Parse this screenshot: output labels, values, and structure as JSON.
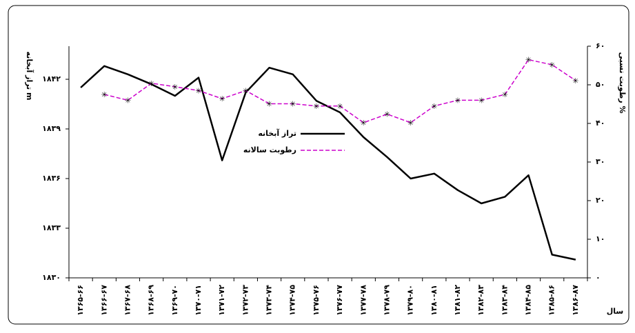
{
  "chart_data": {
    "type": "line",
    "y_label": "تراز آبخانه m",
    "y2_label": "رطوبت نسبی %",
    "x_label": "سال",
    "categories": [
      "۱۳۶۵-۶۶",
      "۱۳۶۶-۶۷",
      "۱۳۶۷-۶۸",
      "۱۳۶۸-۶۹",
      "۱۳۶۹-۷۰",
      "۱۳۷۰-۷۱",
      "۱۳۷۱-۷۲",
      "۱۳۷۲-۷۳",
      "۱۳۷۳-۷۴",
      "۱۳۷۴-۷۵",
      "۱۳۷۵-۷۶",
      "۱۳۷۶-۷۷",
      "۱۳۷۷-۷۸",
      "۱۳۷۸-۷۹",
      "۱۳۷۹-۸۰",
      "۱۳۸۰-۸۱",
      "۱۳۸۱-۸۲",
      "۱۳۸۲-۸۳",
      "۱۳۸۳-۸۴",
      "۱۳۸۴-۸۵",
      "۱۳۸۵-۸۶",
      "۱۳۸۶-۸۷"
    ],
    "series": [
      {
        "name": "تراز آبخانه",
        "color": "#000000",
        "values": [
          1841.5,
          1842.8,
          1842.3,
          1841.7,
          1841.0,
          1842.1,
          1837.1,
          1841.2,
          1842.7,
          1842.3,
          1840.7,
          1840.0,
          1838.5,
          1837.3,
          1836.0,
          1836.3,
          1835.3,
          1834.5,
          1834.9,
          1836.2,
          1831.4,
          1831.1
        ]
      },
      {
        "name": "رطوبت سالانه",
        "color": "#cc00cc",
        "axis": "y2",
        "values": [
          null,
          47.5,
          46,
          50.4,
          49.5,
          48.5,
          46.4,
          48.5,
          45.1,
          45.1,
          44.5,
          44.5,
          40.2,
          42.4,
          40.2,
          44.5,
          46,
          46,
          47.5,
          56.5,
          55.2,
          51.1
        ]
      }
    ],
    "ylim": [
      1830,
      1844
    ],
    "yticks": [
      {
        "value": 1830,
        "label": "۱۸۳۰"
      },
      {
        "value": 1833,
        "label": "۱۸۳۳"
      },
      {
        "value": 1836,
        "label": "۱۸۳۶"
      },
      {
        "value": 1839,
        "label": "۱۸۳۹"
      },
      {
        "value": 1842,
        "label": "۱۸۴۲"
      }
    ],
    "y2lim": [
      0,
      60
    ],
    "y2ticks": [
      {
        "value": 0,
        "label": "۰"
      },
      {
        "value": 10,
        "label": "۱۰"
      },
      {
        "value": 20,
        "label": "۲۰"
      },
      {
        "value": 30,
        "label": "۳۰"
      },
      {
        "value": 40,
        "label": "۴۰"
      },
      {
        "value": 50,
        "label": "۵۰"
      },
      {
        "value": 60,
        "label": "۶۰"
      }
    ]
  }
}
